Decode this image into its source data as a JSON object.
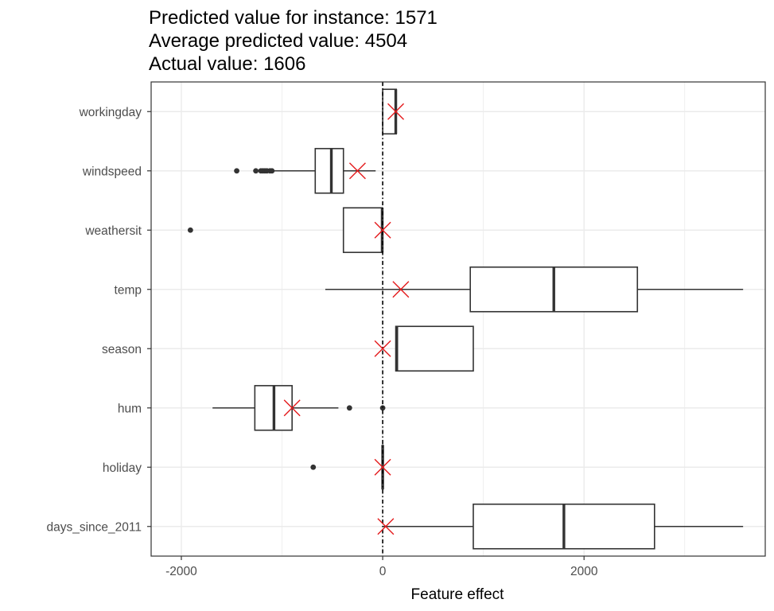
{
  "chart_data": {
    "type": "boxplot",
    "title_lines": [
      "Predicted value for instance: 1571",
      "Average predicted value: 4504",
      "Actual value: 1606"
    ],
    "xlabel": "Feature effect",
    "ylabel": "",
    "xlim": [
      -2300,
      3800
    ],
    "x_ticks": [
      -2000,
      0,
      2000
    ],
    "x_tick_labels": [
      "-2000",
      "0",
      "2000"
    ],
    "grid": true,
    "reference_line_x": 0,
    "categories": [
      "days_since_2011",
      "holiday",
      "hum",
      "season",
      "temp",
      "weathersit",
      "windspeed",
      "workingday"
    ],
    "boxes": [
      {
        "label": "days_since_2011",
        "whisker_low": 0,
        "q1": 900,
        "median": 1800,
        "q3": 2700,
        "whisker_high": 3580,
        "outliers": [],
        "instance_effect": 30
      },
      {
        "label": "holiday",
        "whisker_low": 0,
        "q1": 0,
        "median": 0,
        "q3": 0,
        "whisker_high": 0,
        "outliers": [
          -690
        ],
        "instance_effect": 0
      },
      {
        "label": "hum",
        "whisker_low": -1690,
        "q1": -1270,
        "median": -1080,
        "q3": -900,
        "whisker_high": -440,
        "outliers": [
          -330,
          0
        ],
        "instance_effect": -900
      },
      {
        "label": "season",
        "whisker_low": 130,
        "q1": 130,
        "median": 140,
        "q3": 900,
        "whisker_high": 900,
        "outliers": [],
        "instance_effect": 0
      },
      {
        "label": "temp",
        "whisker_low": -570,
        "q1": 870,
        "median": 1700,
        "q3": 2530,
        "whisker_high": 3580,
        "outliers": [],
        "instance_effect": 180
      },
      {
        "label": "weathersit",
        "whisker_low": -390,
        "q1": -390,
        "median": -5,
        "q3": -5,
        "whisker_high": -5,
        "outliers": [
          -1910
        ],
        "instance_effect": 0
      },
      {
        "label": "windspeed",
        "whisker_low": -1100,
        "q1": -670,
        "median": -510,
        "q3": -390,
        "whisker_high": -70,
        "outliers": [
          -1450,
          -1260,
          -1210,
          -1190,
          -1170,
          -1150,
          -1120,
          -1100
        ],
        "instance_effect": -250
      },
      {
        "label": "workingday",
        "whisker_low": 0,
        "q1": 0,
        "median": 130,
        "q3": 135,
        "whisker_high": 135,
        "outliers": [],
        "instance_effect": 130
      }
    ],
    "colors": {
      "box_stroke": "#333333",
      "instance_marker": "#e41a1c",
      "grid": "#ebebeb",
      "panel_border": "#333333",
      "reference_line": "#000000"
    }
  }
}
